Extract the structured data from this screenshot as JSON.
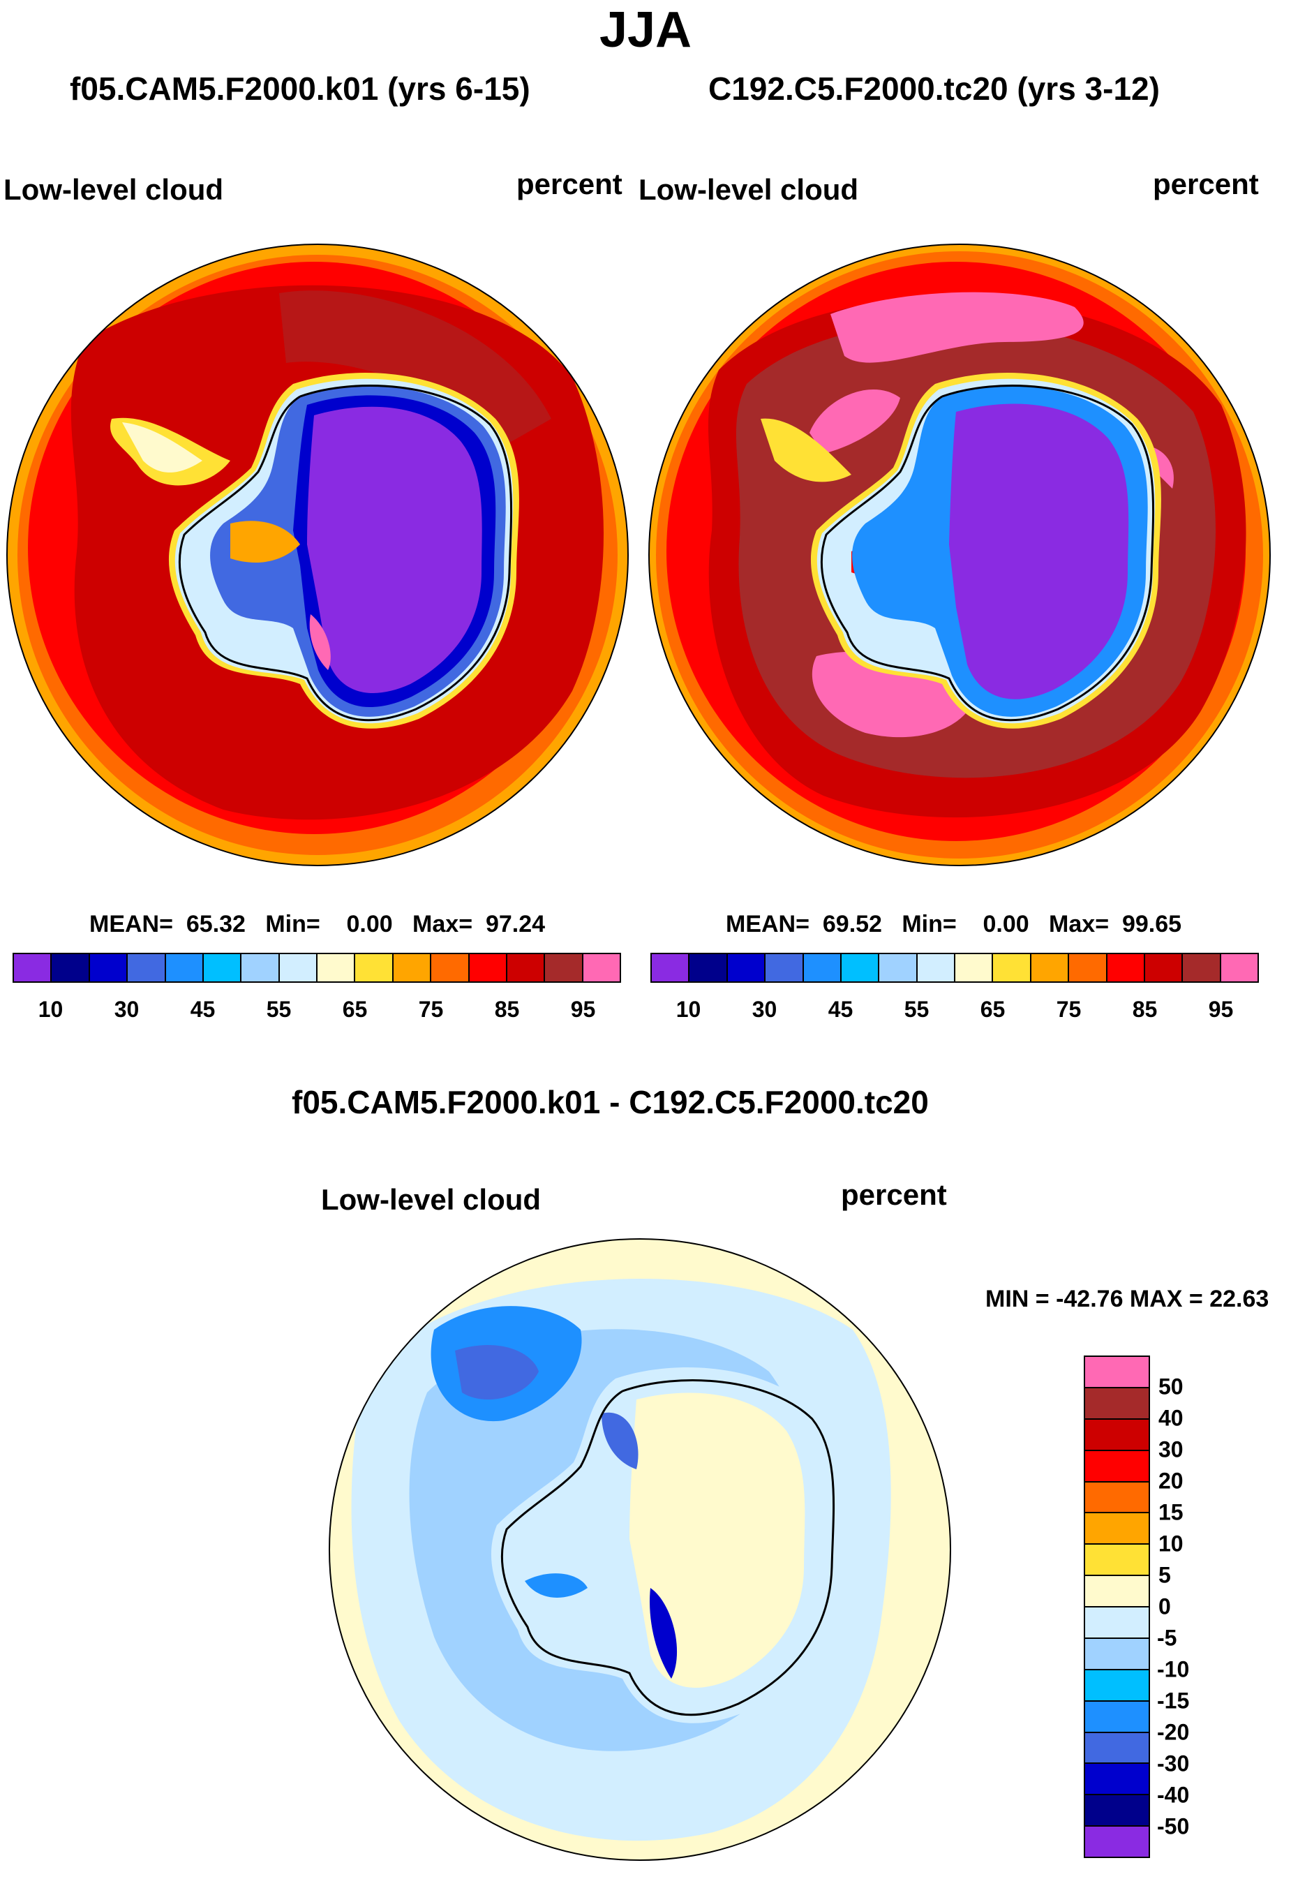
{
  "title": "JJA",
  "panels": {
    "left": {
      "run": "f05.CAM5.F2000.k01 (yrs 6-15)",
      "variable": "Low-level cloud",
      "units": "percent",
      "mean_label": "MEAN=",
      "mean": "65.32",
      "min_label": "Min=",
      "min": "0.00",
      "max_label": "Max=",
      "max": "97.24"
    },
    "right": {
      "run": "C192.C5.F2000.tc20 (yrs 3-12)",
      "variable": "Low-level cloud",
      "units": "percent",
      "mean_label": "MEAN=",
      "mean": "69.52",
      "min_label": "Min=",
      "min": "0.00",
      "max_label": "Max=",
      "max": "99.65"
    },
    "diff": {
      "title": "f05.CAM5.F2000.k01 - C192.C5.F2000.tc20",
      "variable": "Low-level cloud",
      "units": "percent",
      "minmax": "MIN = -42.76 MAX =  22.63"
    }
  },
  "colorbar_abs": {
    "colors": [
      "#8a2be2",
      "#00008b",
      "#0000cd",
      "#4169e1",
      "#1e90ff",
      "#00bfff",
      "#a0d2ff",
      "#d2eeff",
      "#fffacd",
      "#ffe135",
      "#ffa500",
      "#ff6a00",
      "#ff0000",
      "#cd0000",
      "#a52a2a",
      "#ff69b4"
    ],
    "tick_labels": [
      "10",
      "30",
      "45",
      "55",
      "65",
      "75",
      "85",
      "95"
    ]
  },
  "colorbar_diff": {
    "colors_top_to_bottom": [
      "#ff69b4",
      "#a52a2a",
      "#cd0000",
      "#ff0000",
      "#ff6a00",
      "#ffa500",
      "#ffe135",
      "#fffacd",
      "#d2eeff",
      "#a0d2ff",
      "#00bfff",
      "#1e90ff",
      "#4169e1",
      "#0000cd",
      "#00008b",
      "#8a2be2"
    ],
    "tick_labels": [
      "50",
      "40",
      "30",
      "20",
      "15",
      "10",
      "5",
      "0",
      "-5",
      "-10",
      "-15",
      "-20",
      "-30",
      "-40",
      "-50"
    ]
  }
}
